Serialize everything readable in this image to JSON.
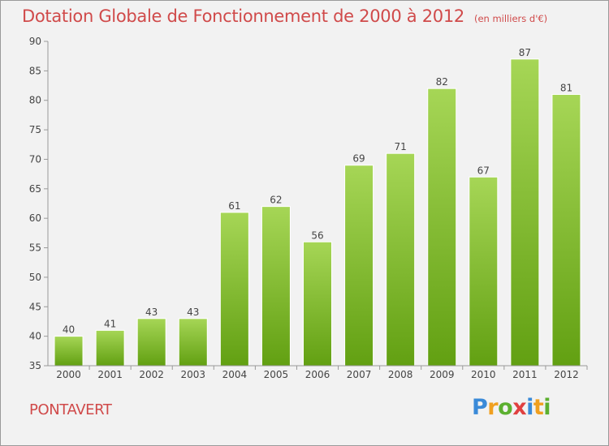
{
  "chart_data": {
    "type": "bar",
    "title": "Dotation Globale de Fonctionnement de 2000 à 2012",
    "subtitle": "(en milliers d'€)",
    "categories": [
      "2000",
      "2001",
      "2002",
      "2003",
      "2004",
      "2005",
      "2006",
      "2007",
      "2008",
      "2009",
      "2010",
      "2011",
      "2012"
    ],
    "values": [
      40,
      41,
      43,
      43,
      61,
      62,
      56,
      69,
      71,
      82,
      67,
      87,
      81
    ],
    "ylim": [
      35,
      90
    ],
    "yticks": [
      35,
      40,
      45,
      50,
      55,
      60,
      65,
      70,
      75,
      80,
      85,
      90
    ],
    "grid": false,
    "colors": {
      "bar_light": "#a6d656",
      "bar_dark": "#62a012",
      "label": "#444444",
      "axis": "#999999"
    }
  },
  "commune": "PONTAVERT",
  "logo": {
    "letters": [
      "P",
      "r",
      "o",
      "x",
      "i",
      "t",
      "i"
    ],
    "colors": [
      "#3a8ad8",
      "#f0a020",
      "#5cb030",
      "#e04040",
      "#3a8ad8",
      "#f0a020",
      "#5cb030"
    ]
  }
}
